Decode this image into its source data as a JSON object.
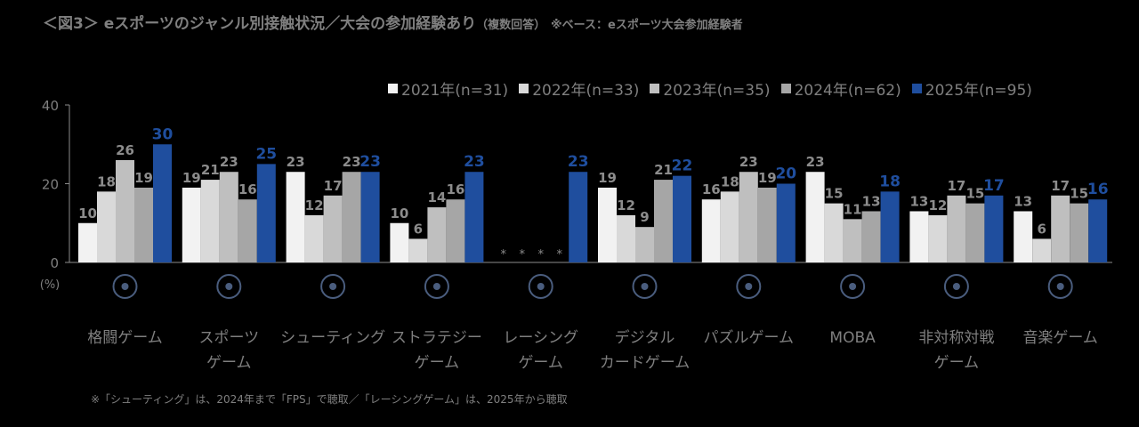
{
  "title": {
    "main": "＜図3＞ eスポーツのジャンル別接触状況／大会の参加経験あり",
    "note": "（複数回答）",
    "base": "※ベース：eスポーツ大会参加経験者"
  },
  "footnote": "※「シューティング」は、2024年まで「FPS」で聴取／「レーシングゲーム」は、2025年から聴取",
  "colors": [
    "#f2f2f2",
    "#d9d9d9",
    "#bfbfbf",
    "#a6a6a6",
    "#1f4e9e"
  ],
  "chart_data": {
    "type": "bar",
    "title": "＜図3＞ eスポーツのジャンル別接触状況／大会の参加経験あり",
    "ylabel": "(%)",
    "ylim": [
      0,
      40
    ],
    "yticks": [
      0,
      20,
      40
    ],
    "legend_position": "top-right",
    "categories": [
      [
        "格闘ゲーム"
      ],
      [
        "スポーツ",
        "ゲーム"
      ],
      [
        "シューティング"
      ],
      [
        "ストラテジー",
        "ゲーム"
      ],
      [
        "レーシング",
        "ゲーム"
      ],
      [
        "デジタル",
        "カードゲーム"
      ],
      [
        "パズルゲーム"
      ],
      [
        "MOBA"
      ],
      [
        "非対称対戦",
        "ゲーム"
      ],
      [
        "音楽ゲーム"
      ]
    ],
    "icons": [
      "boxing-glove-icon",
      "soccer-ball-icon",
      "crosshair-icon",
      "swords-chess-knight-icon",
      "race-car-icon",
      "card-icon",
      "puzzle-piece-icon",
      "pilot-icon",
      "chase-icon",
      "music-note-icon"
    ],
    "missing_marker": "*",
    "series": [
      {
        "name": "2021年(n=31)",
        "values": [
          10,
          19,
          23,
          10,
          null,
          19,
          16,
          23,
          13,
          13
        ]
      },
      {
        "name": "2022年(n=33)",
        "values": [
          18,
          21,
          12,
          6,
          null,
          12,
          18,
          15,
          12,
          6
        ]
      },
      {
        "name": "2023年(n=35)",
        "values": [
          26,
          23,
          17,
          14,
          null,
          9,
          23,
          11,
          17,
          17
        ]
      },
      {
        "name": "2024年(n=62)",
        "values": [
          19,
          16,
          23,
          16,
          null,
          21,
          19,
          13,
          15,
          15
        ]
      },
      {
        "name": "2025年(n=95)",
        "values": [
          30,
          25,
          23,
          23,
          23,
          22,
          20,
          18,
          17,
          16
        ]
      }
    ]
  }
}
